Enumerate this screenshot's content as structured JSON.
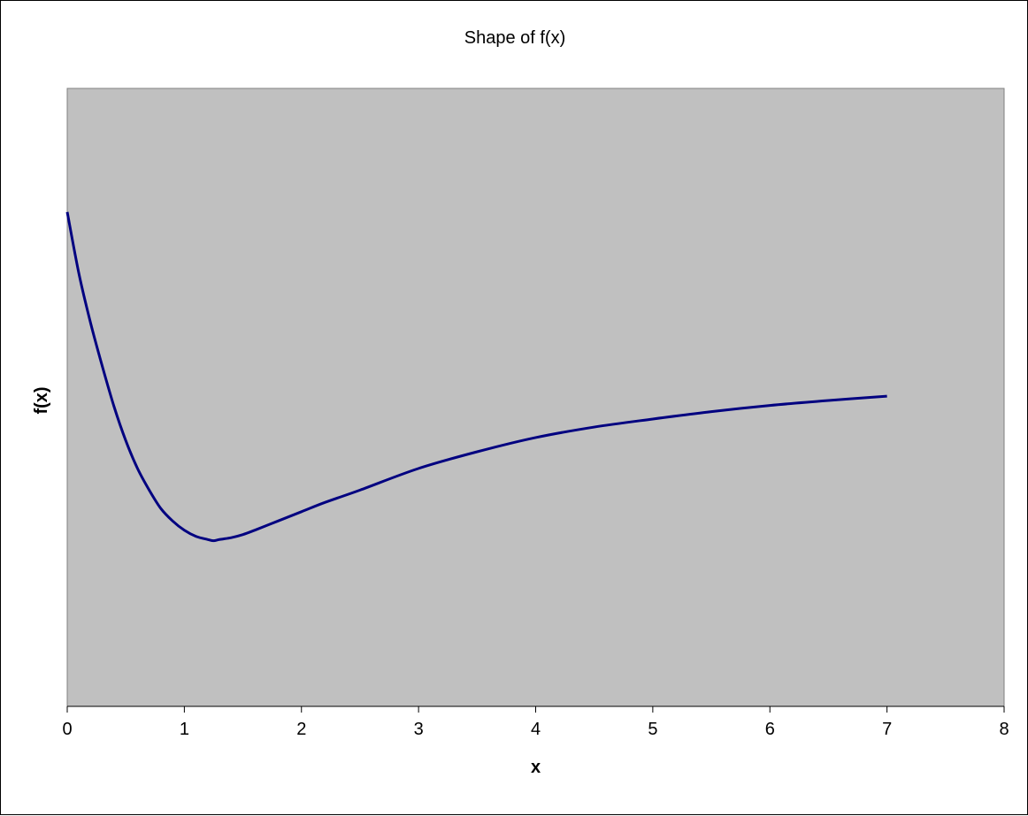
{
  "chart_data": {
    "type": "line",
    "title": "Shape of f(x)",
    "xlabel": "x",
    "ylabel": "f(x)",
    "xlim": [
      0,
      8
    ],
    "xticks": [
      0,
      1,
      2,
      3,
      4,
      5,
      6,
      7,
      8
    ],
    "ylim": [
      0,
      1
    ],
    "yticks_shown": false,
    "grid": false,
    "legend": "none",
    "colors": {
      "plot_background": "#c0c0c0",
      "line": "#000080",
      "frame": "#000000"
    },
    "series": [
      {
        "x": [
          0,
          0.1,
          0.2,
          0.3,
          0.4,
          0.5,
          0.6,
          0.7,
          0.8,
          0.9,
          1.0,
          1.1,
          1.2,
          1.25,
          1.3,
          1.4,
          1.5,
          1.6,
          1.8,
          2.0,
          2.2,
          2.5,
          3.0,
          3.5,
          4.0,
          4.5,
          5.0,
          5.5,
          6.0,
          6.5,
          7.0
        ],
        "y": [
          0.8,
          0.7,
          0.62,
          0.55,
          0.485,
          0.43,
          0.385,
          0.35,
          0.32,
          0.3,
          0.285,
          0.275,
          0.27,
          0.268,
          0.27,
          0.273,
          0.278,
          0.285,
          0.3,
          0.315,
          0.33,
          0.35,
          0.385,
          0.412,
          0.435,
          0.452,
          0.465,
          0.477,
          0.487,
          0.495,
          0.502
        ]
      }
    ]
  }
}
